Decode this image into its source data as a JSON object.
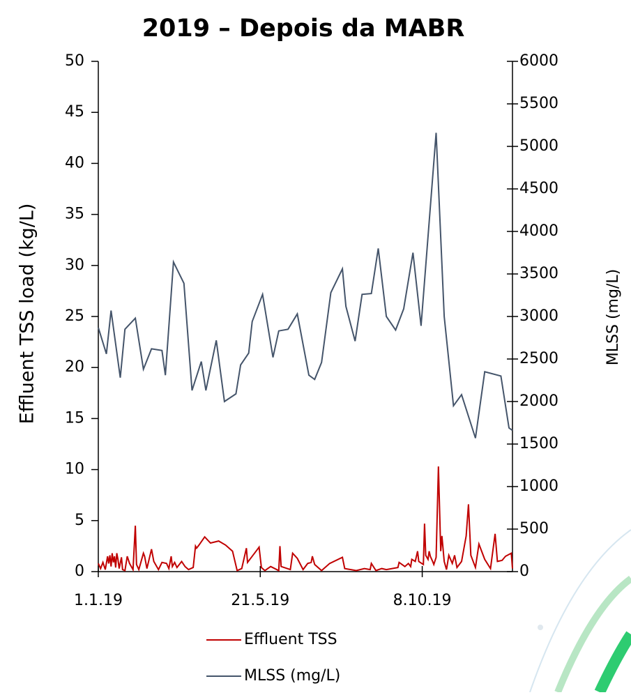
{
  "chart_data": {
    "type": "line",
    "title": "2019 – Depois da MABR",
    "y_label": "Effluent TSS load (kg/L)",
    "y2_label": "MLSS (mg/L)",
    "xlim": [
      "2019-01-01",
      "2019-12-25"
    ],
    "xticks": [
      {
        "value": "2019-01-01",
        "label": "1.1.19"
      },
      {
        "value": "2019-05-21",
        "label": "21.5.19"
      },
      {
        "value": "2019-10-08",
        "label": "8.10.19"
      }
    ],
    "ylim": [
      0,
      50
    ],
    "yticks": [
      0,
      5,
      10,
      15,
      20,
      25,
      30,
      35,
      40,
      45,
      50
    ],
    "y2lim": [
      0,
      6000
    ],
    "y2ticks": [
      0,
      500,
      1000,
      1500,
      2000,
      2500,
      3000,
      3500,
      4000,
      4500,
      5000,
      5500,
      6000
    ],
    "grid": false,
    "series": [
      {
        "name": "Effluent TSS",
        "color": "#c00000",
        "x": [
          "2019-01-01",
          "2019-01-03",
          "2019-01-05",
          "2019-01-07",
          "2019-01-09",
          "2019-01-10",
          "2019-01-11",
          "2019-01-12",
          "2019-01-13",
          "2019-01-14",
          "2019-01-15",
          "2019-01-16",
          "2019-01-17",
          "2019-01-18",
          "2019-01-19",
          "2019-01-21",
          "2019-01-22",
          "2019-01-24",
          "2019-01-26",
          "2019-01-28",
          "2019-01-31",
          "2019-02-02",
          "2019-02-03",
          "2019-02-05",
          "2019-02-09",
          "2019-02-10",
          "2019-02-12",
          "2019-02-16",
          "2019-02-18",
          "2019-02-22",
          "2019-02-25",
          "2019-03-01",
          "2019-03-03",
          "2019-03-05",
          "2019-03-06",
          "2019-03-08",
          "2019-03-10",
          "2019-03-14",
          "2019-03-17",
          "2019-03-20",
          "2019-03-24",
          "2019-03-26",
          "2019-03-27",
          "2019-03-29",
          "2019-04-03",
          "2019-04-08",
          "2019-04-15",
          "2019-04-21",
          "2019-04-27",
          "2019-05-01",
          "2019-05-05",
          "2019-05-09",
          "2019-05-10",
          "2019-05-18",
          "2019-05-20",
          "2019-05-22",
          "2019-05-25",
          "2019-05-30",
          "2019-06-06",
          "2019-06-07",
          "2019-06-08",
          "2019-06-16",
          "2019-06-18",
          "2019-06-22",
          "2019-06-27",
          "2019-07-01",
          "2019-07-04",
          "2019-07-05",
          "2019-07-07",
          "2019-07-13",
          "2019-07-20",
          "2019-07-31",
          "2019-08-02",
          "2019-08-12",
          "2019-08-19",
          "2019-08-24",
          "2019-08-25",
          "2019-08-29",
          "2019-09-03",
          "2019-09-07",
          "2019-09-17",
          "2019-09-18",
          "2019-09-23",
          "2019-09-26",
          "2019-09-28",
          "2019-09-29",
          "2019-10-02",
          "2019-10-04",
          "2019-10-05",
          "2019-10-09",
          "2019-10-10",
          "2019-10-11",
          "2019-10-13",
          "2019-10-14",
          "2019-10-15",
          "2019-10-17",
          "2019-10-18",
          "2019-10-20",
          "2019-10-22",
          "2019-10-24",
          "2019-10-25",
          "2019-10-27",
          "2019-10-29",
          "2019-10-31",
          "2019-11-03",
          "2019-11-05",
          "2019-11-07",
          "2019-11-11",
          "2019-11-15",
          "2019-11-17",
          "2019-11-19",
          "2019-11-23",
          "2019-11-26",
          "2019-12-01",
          "2019-12-06",
          "2019-12-10",
          "2019-12-12",
          "2019-12-16",
          "2019-12-19",
          "2019-12-24",
          "2019-12-25"
        ],
        "values": [
          0.8,
          0.3,
          0.9,
          0.2,
          1.5,
          0.8,
          1.6,
          0.5,
          1.8,
          0.9,
          1.5,
          0.4,
          1.8,
          1.2,
          0.3,
          1.4,
          0.2,
          0.1,
          1.5,
          0.8,
          0.2,
          4.5,
          0.7,
          0.2,
          1.8,
          1.5,
          0.3,
          2.2,
          1.0,
          0.2,
          0.9,
          0.8,
          0.3,
          1.5,
          0.5,
          0.9,
          0.4,
          1.0,
          0.5,
          0.2,
          0.4,
          2.5,
          2.3,
          2.6,
          3.4,
          2.8,
          3.0,
          2.6,
          2.0,
          0.1,
          0.3,
          2.3,
          0.9,
          2.1,
          2.4,
          0.4,
          0.1,
          0.5,
          0.1,
          2.5,
          0.5,
          0.2,
          1.8,
          1.3,
          0.2,
          0.8,
          0.9,
          1.5,
          0.7,
          0.1,
          0.8,
          1.4,
          0.3,
          0.1,
          0.3,
          0.2,
          0.8,
          0.1,
          0.3,
          0.2,
          0.4,
          0.9,
          0.5,
          0.8,
          0.5,
          1.2,
          1.0,
          2.0,
          1.0,
          0.7,
          4.7,
          1.6,
          1.2,
          2.0,
          1.5,
          1.0,
          0.7,
          1.4,
          10.3,
          2.0,
          3.5,
          1.0,
          0.2,
          1.6,
          0.8,
          1.6,
          0.4,
          1.0,
          3.5,
          6.6,
          1.6,
          0.4,
          2.7,
          1.2,
          0.3,
          3.7,
          1.0,
          1.1,
          1.5,
          1.8,
          0.3
        ]
      },
      {
        "name": "MLSS (mg/L)",
        "color": "#44546a",
        "axis": "y2",
        "x": [
          "2019-01-01",
          "2019-01-08",
          "2019-01-12",
          "2019-01-20",
          "2019-01-24",
          "2019-02-02",
          "2019-02-09",
          "2019-02-16",
          "2019-02-25",
          "2019-02-28",
          "2019-03-07",
          "2019-03-16",
          "2019-03-23",
          "2019-03-31",
          "2019-04-04",
          "2019-04-13",
          "2019-04-20",
          "2019-04-30",
          "2019-05-04",
          "2019-05-11",
          "2019-05-14",
          "2019-05-23",
          "2019-06-01",
          "2019-06-06",
          "2019-06-14",
          "2019-06-22",
          "2019-07-02",
          "2019-07-07",
          "2019-07-13",
          "2019-07-21",
          "2019-07-31",
          "2019-08-03",
          "2019-08-11",
          "2019-08-17",
          "2019-08-25",
          "2019-08-31",
          "2019-09-07",
          "2019-09-15",
          "2019-09-22",
          "2019-09-30",
          "2019-10-07",
          "2019-10-20",
          "2019-10-27",
          "2019-11-04",
          "2019-11-11",
          "2019-11-23",
          "2019-12-01",
          "2019-12-15",
          "2019-12-22",
          "2019-12-25"
        ],
        "values": [
          2870,
          2560,
          3070,
          2280,
          2850,
          2980,
          2380,
          2620,
          2600,
          2310,
          3640,
          3390,
          2130,
          2470,
          2130,
          2720,
          2000,
          2090,
          2430,
          2570,
          2940,
          3260,
          2520,
          2830,
          2850,
          3030,
          2310,
          2260,
          2460,
          3280,
          3560,
          3120,
          2710,
          3260,
          3270,
          3800,
          3000,
          2840,
          3090,
          3750,
          2890,
          5160,
          3000,
          1950,
          2080,
          1570,
          2350,
          2300,
          1690,
          1660
        ]
      }
    ]
  }
}
